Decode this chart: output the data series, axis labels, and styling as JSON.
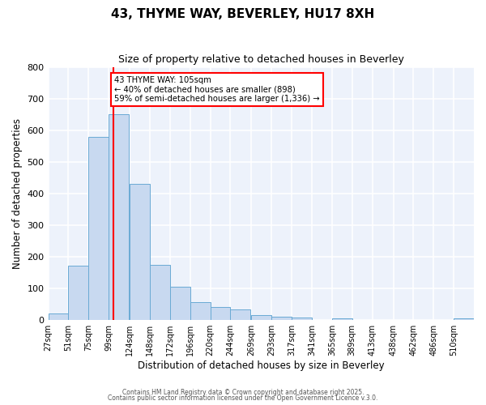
{
  "title": "43, THYME WAY, BEVERLEY, HU17 8XH",
  "subtitle": "Size of property relative to detached houses in Beverley",
  "xlabel": "Distribution of detached houses by size in Beverley",
  "ylabel": "Number of detached properties",
  "bar_color": "#c8d9f0",
  "bar_edge_color": "#6aaad4",
  "background_color": "#edf2fb",
  "grid_color": "#ffffff",
  "bins": [
    27,
    51,
    75,
    99,
    124,
    148,
    172,
    196,
    220,
    244,
    269,
    293,
    317,
    341,
    365,
    389,
    413,
    438,
    462,
    486,
    510
  ],
  "values": [
    20,
    170,
    580,
    650,
    430,
    175,
    105,
    57,
    40,
    33,
    15,
    10,
    8,
    0,
    5,
    0,
    0,
    0,
    0,
    0,
    5
  ],
  "bin_width": 24,
  "red_line_x": 105,
  "annotation_title": "43 THYME WAY: 105sqm",
  "annotation_line1": "← 40% of detached houses are smaller (898)",
  "annotation_line2": "59% of semi-detached houses are larger (1,336) →",
  "ylim": [
    0,
    800
  ],
  "yticks": [
    0,
    100,
    200,
    300,
    400,
    500,
    600,
    700,
    800
  ],
  "footer1": "Contains HM Land Registry data © Crown copyright and database right 2025.",
  "footer2": "Contains public sector information licensed under the Open Government Licence v.3.0."
}
